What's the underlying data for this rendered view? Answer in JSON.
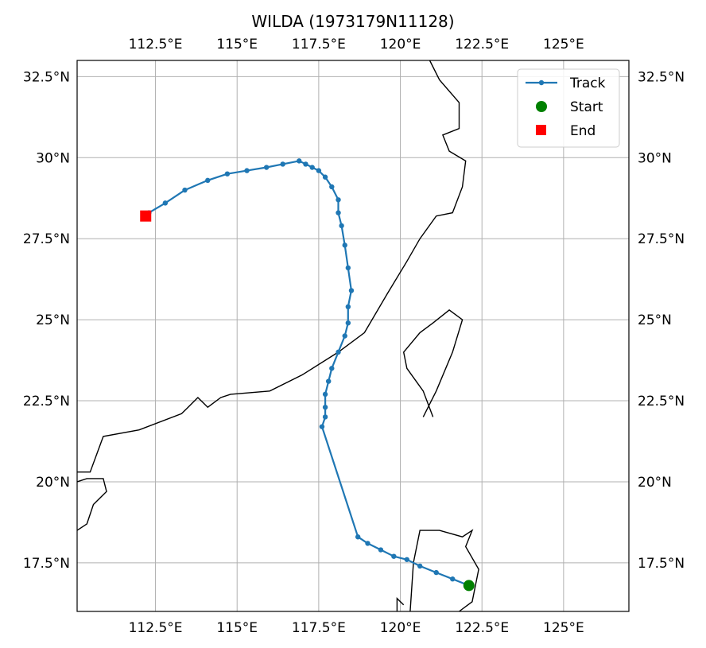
{
  "chart_data": {
    "type": "line",
    "title": "WILDA (1973179N11128)",
    "xlabel": "",
    "ylabel": "",
    "xlim": [
      110.1,
      127.0
    ],
    "ylim": [
      16.0,
      33.0
    ],
    "grid": true,
    "legend_position": "top-right",
    "x_ticks": [
      {
        "value": 112.5,
        "label": "112.5°E"
      },
      {
        "value": 115.0,
        "label": "115°E"
      },
      {
        "value": 117.5,
        "label": "117.5°E"
      },
      {
        "value": 120.0,
        "label": "120°E"
      },
      {
        "value": 122.5,
        "label": "122.5°E"
      },
      {
        "value": 125.0,
        "label": "125°E"
      }
    ],
    "y_ticks": [
      {
        "value": 17.5,
        "label": "17.5°N"
      },
      {
        "value": 20.0,
        "label": "20°N"
      },
      {
        "value": 22.5,
        "label": "22.5°N"
      },
      {
        "value": 25.0,
        "label": "25°N"
      },
      {
        "value": 27.5,
        "label": "27.5°N"
      },
      {
        "value": 30.0,
        "label": "30°N"
      },
      {
        "value": 32.5,
        "label": "32.5°N"
      }
    ],
    "series": [
      {
        "name": "Track",
        "color": "#1f77b4",
        "points": [
          [
            122.1,
            16.8
          ],
          [
            121.6,
            17.0
          ],
          [
            121.1,
            17.2
          ],
          [
            120.6,
            17.4
          ],
          [
            120.2,
            17.6
          ],
          [
            119.8,
            17.7
          ],
          [
            119.4,
            17.9
          ],
          [
            119.0,
            18.1
          ],
          [
            118.7,
            18.3
          ],
          [
            117.6,
            21.7
          ],
          [
            117.7,
            22.0
          ],
          [
            117.7,
            22.3
          ],
          [
            117.7,
            22.7
          ],
          [
            117.8,
            23.1
          ],
          [
            117.9,
            23.5
          ],
          [
            118.1,
            24.0
          ],
          [
            118.3,
            24.5
          ],
          [
            118.4,
            24.9
          ],
          [
            118.4,
            25.4
          ],
          [
            118.5,
            25.9
          ],
          [
            118.4,
            26.6
          ],
          [
            118.3,
            27.3
          ],
          [
            118.2,
            27.9
          ],
          [
            118.1,
            28.3
          ],
          [
            118.1,
            28.7
          ],
          [
            117.9,
            29.1
          ],
          [
            117.7,
            29.4
          ],
          [
            117.5,
            29.6
          ],
          [
            117.3,
            29.7
          ],
          [
            117.1,
            29.8
          ],
          [
            116.9,
            29.9
          ],
          [
            116.4,
            29.8
          ],
          [
            115.9,
            29.7
          ],
          [
            115.3,
            29.6
          ],
          [
            114.7,
            29.5
          ],
          [
            114.1,
            29.3
          ],
          [
            113.4,
            29.0
          ],
          [
            112.8,
            28.6
          ],
          [
            112.3,
            28.3
          ],
          [
            112.2,
            28.2
          ]
        ]
      }
    ],
    "start": {
      "name": "Start",
      "lon": 122.1,
      "lat": 16.8,
      "color": "#008000",
      "marker": "circle"
    },
    "end": {
      "name": "End",
      "lon": 112.2,
      "lat": 28.2,
      "color": "#ff0000",
      "marker": "square"
    },
    "coastlines": [
      [
        [
          110.1,
          20.3
        ],
        [
          110.5,
          20.3
        ],
        [
          110.9,
          21.4
        ],
        [
          112.0,
          21.6
        ],
        [
          113.3,
          22.1
        ],
        [
          113.5,
          22.3
        ],
        [
          113.8,
          22.6
        ],
        [
          114.1,
          22.3
        ],
        [
          114.5,
          22.6
        ],
        [
          114.8,
          22.7
        ],
        [
          116.0,
          22.8
        ],
        [
          117.0,
          23.3
        ],
        [
          118.1,
          24.0
        ],
        [
          118.9,
          24.6
        ],
        [
          119.6,
          25.8
        ],
        [
          120.2,
          26.8
        ],
        [
          120.6,
          27.5
        ],
        [
          121.1,
          28.2
        ],
        [
          121.6,
          28.3
        ],
        [
          121.9,
          29.1
        ],
        [
          122.0,
          29.9
        ],
        [
          121.5,
          30.2
        ],
        [
          121.3,
          30.7
        ],
        [
          121.8,
          30.9
        ],
        [
          121.8,
          31.7
        ],
        [
          121.2,
          32.4
        ],
        [
          120.9,
          33.0
        ]
      ],
      [
        [
          110.1,
          20.0
        ],
        [
          110.4,
          20.1
        ],
        [
          110.9,
          20.1
        ],
        [
          111.0,
          19.7
        ],
        [
          110.6,
          19.3
        ],
        [
          110.4,
          18.7
        ],
        [
          110.1,
          18.5
        ]
      ],
      [
        [
          121.0,
          22.0
        ],
        [
          120.7,
          22.8
        ],
        [
          120.2,
          23.5
        ],
        [
          120.1,
          24.0
        ],
        [
          120.6,
          24.6
        ],
        [
          121.0,
          24.9
        ],
        [
          121.5,
          25.3
        ],
        [
          121.9,
          25.0
        ],
        [
          121.6,
          24.0
        ],
        [
          121.1,
          22.8
        ],
        [
          120.7,
          22.0
        ]
      ],
      [
        [
          120.3,
          16.0
        ],
        [
          120.4,
          17.5
        ],
        [
          120.6,
          18.5
        ],
        [
          121.2,
          18.5
        ],
        [
          121.9,
          18.3
        ],
        [
          122.2,
          18.5
        ],
        [
          122.0,
          18.0
        ],
        [
          122.4,
          17.3
        ],
        [
          122.2,
          16.3
        ],
        [
          121.8,
          16.0
        ]
      ],
      [
        [
          119.9,
          16.0
        ],
        [
          119.9,
          16.4
        ],
        [
          120.1,
          16.2
        ]
      ]
    ]
  }
}
